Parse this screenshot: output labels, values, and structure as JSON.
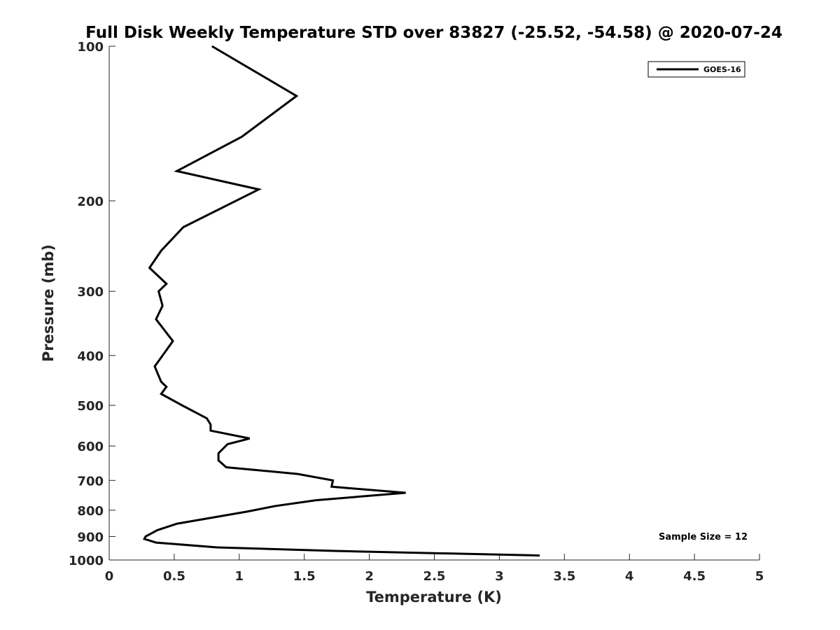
{
  "chart_data": {
    "type": "line",
    "title": "Full Disk Weekly Temperature STD over 83827 (-25.52, -54.58) @ 2020-07-24",
    "xlabel": "Temperature (K)",
    "ylabel": "Pressure (mb)",
    "xlim": [
      0,
      5
    ],
    "ylim": [
      100,
      1000
    ],
    "yscale": "log",
    "yreversed": true,
    "xticks": [
      "0",
      "0.5",
      "1",
      "1.5",
      "2",
      "2.5",
      "3",
      "3.5",
      "4",
      "4.5",
      "5"
    ],
    "yticks": [
      100,
      200,
      300,
      400,
      500,
      600,
      700,
      800,
      900,
      1000
    ],
    "ytick_labels": [
      "100",
      "200",
      "300",
      "400",
      "500",
      "600",
      "700",
      "800",
      "900",
      "1000"
    ],
    "grid": false,
    "legend_position": "top-right",
    "series": [
      {
        "name": "GOES-16",
        "color": "#000000",
        "points": [
          [
            0.79,
            100
          ],
          [
            1.44,
            125
          ],
          [
            1.02,
            150
          ],
          [
            0.52,
            175
          ],
          [
            1.15,
            190
          ],
          [
            0.57,
            225
          ],
          [
            0.4,
            250
          ],
          [
            0.31,
            270
          ],
          [
            0.44,
            290
          ],
          [
            0.38,
            300
          ],
          [
            0.41,
            320
          ],
          [
            0.36,
            340
          ],
          [
            0.49,
            375
          ],
          [
            0.35,
            420
          ],
          [
            0.4,
            450
          ],
          [
            0.44,
            460
          ],
          [
            0.4,
            475
          ],
          [
            0.56,
            500
          ],
          [
            0.75,
            530
          ],
          [
            0.78,
            545
          ],
          [
            0.78,
            560
          ],
          [
            1.08,
            580
          ],
          [
            0.91,
            595
          ],
          [
            0.84,
            620
          ],
          [
            0.84,
            640
          ],
          [
            0.9,
            660
          ],
          [
            1.45,
            680
          ],
          [
            1.72,
            700
          ],
          [
            1.71,
            720
          ],
          [
            2.28,
            740
          ],
          [
            1.59,
            765
          ],
          [
            1.28,
            785
          ],
          [
            1.06,
            805
          ],
          [
            0.52,
            850
          ],
          [
            0.37,
            875
          ],
          [
            0.28,
            900
          ],
          [
            0.27,
            910
          ],
          [
            0.36,
            925
          ],
          [
            0.83,
            945
          ],
          [
            1.73,
            960
          ],
          [
            3.31,
            980
          ]
        ]
      }
    ],
    "annotations": [
      {
        "text": "Sample Size = 12",
        "position": "bottom-right"
      }
    ]
  }
}
